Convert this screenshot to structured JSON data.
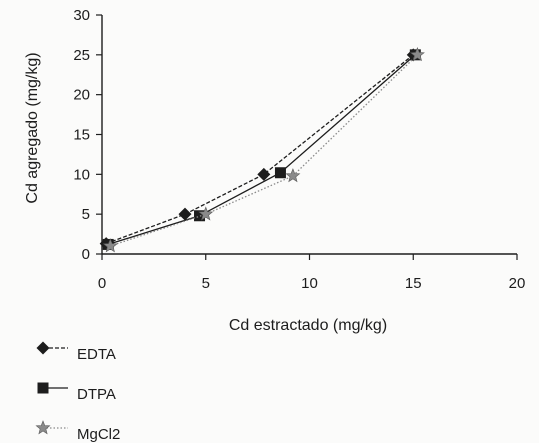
{
  "chart_data": {
    "type": "line",
    "title": "",
    "xlabel": "Cd estractado (mg/kg)",
    "ylabel": "Cd agregado (mg/kg)",
    "xlim": [
      0,
      20
    ],
    "ylim": [
      0,
      30
    ],
    "xticks": [
      "0",
      "5",
      "10",
      "15",
      "20"
    ],
    "yticks": [
      "0",
      "5",
      "10",
      "15",
      "20",
      "25",
      "30"
    ],
    "grid": false,
    "legend_position": "bottom-left",
    "series": [
      {
        "name": "EDTA",
        "marker": "diamond",
        "line_style": "dashed",
        "color": "#1d1d1d",
        "x": [
          0.2,
          4.0,
          7.8,
          15.0
        ],
        "y": [
          1.3,
          5.0,
          10.0,
          25.0
        ]
      },
      {
        "name": "DTPA",
        "marker": "square",
        "line_style": "solid",
        "color": "#1d1d1d",
        "x": [
          0.3,
          4.7,
          8.6,
          15.1
        ],
        "y": [
          1.2,
          4.8,
          10.2,
          25.0
        ]
      },
      {
        "name": "MgCl2",
        "marker": "star",
        "line_style": "dotted",
        "color": "#8a8a8a",
        "x": [
          0.4,
          5.0,
          9.2,
          15.2
        ],
        "y": [
          1.0,
          5.0,
          9.8,
          25.0
        ]
      }
    ]
  }
}
